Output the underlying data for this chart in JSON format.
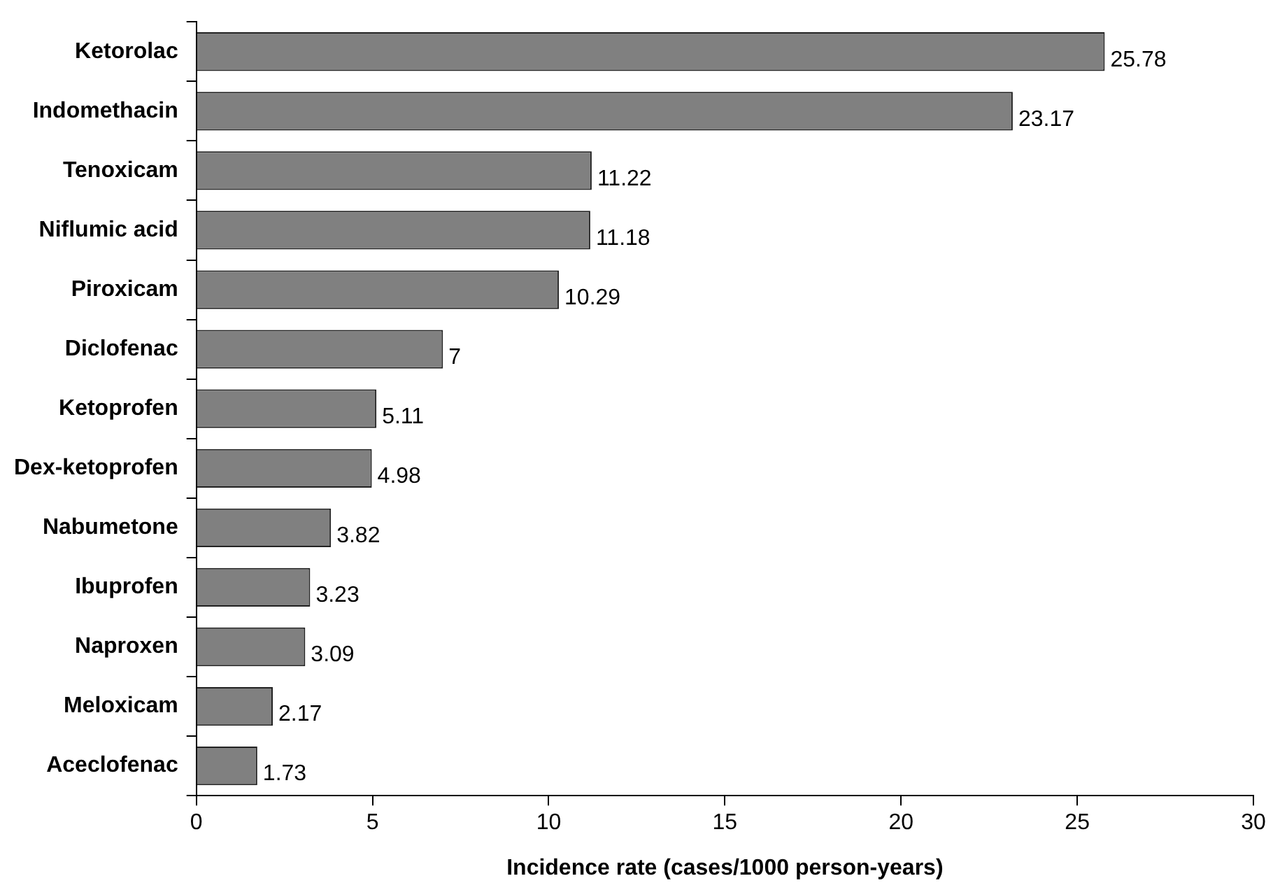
{
  "chart_data": {
    "type": "bar",
    "orientation": "horizontal",
    "xlabel": "Incidence rate (cases/1000 person-years)",
    "categories": [
      "Ketorolac",
      "Indomethacin",
      "Tenoxicam",
      "Niflumic acid",
      "Piroxicam",
      "Diclofenac",
      "Ketoprofen",
      "Dex-ketoprofen",
      "Nabumetone",
      "Ibuprofen",
      "Naproxen",
      "Meloxicam",
      "Aceclofenac"
    ],
    "values": [
      25.78,
      23.17,
      11.22,
      11.18,
      10.29,
      7,
      5.11,
      4.98,
      3.82,
      3.23,
      3.09,
      2.17,
      1.73
    ],
    "color": "#808080",
    "xlim": [
      0,
      30
    ],
    "xticks": [
      0,
      5,
      10,
      15,
      20,
      25,
      30
    ],
    "data_labels": true,
    "grid": false,
    "legend": false
  }
}
